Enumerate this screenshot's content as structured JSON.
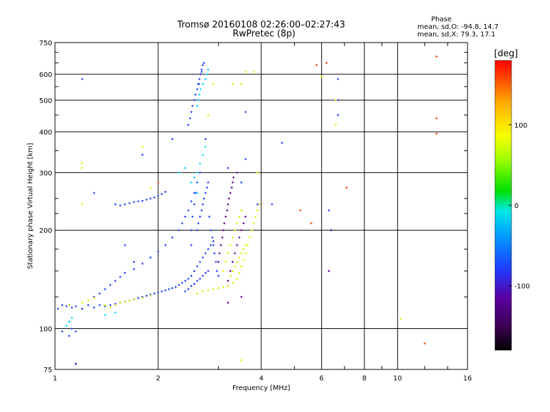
{
  "chart_data": {
    "type": "scatter",
    "title_line1": "Tromsø 20160108 02:26:00–02:27:43",
    "title_line2": "RwPretec (8p)",
    "phase_header": "Phase",
    "phase_o": "mean, sd,O: -94.8, 14.7",
    "phase_x": "mean, sd,X:  79.3, 17.1",
    "xlabel": "Frequency [MHz]",
    "ylabel": "Stationary phase Virtual Height [km]",
    "x_scale": "log",
    "y_scale": "log",
    "xlim": [
      1,
      16
    ],
    "ylim": [
      75,
      750
    ],
    "grid": true,
    "x_ticks": [
      1,
      2,
      4,
      6,
      8,
      10,
      16
    ],
    "y_ticks": [
      75,
      100,
      200,
      300,
      400,
      500,
      600,
      750
    ],
    "colorbar": {
      "label": "[deg]",
      "range": [
        -180,
        180
      ],
      "ticks": [
        100,
        0,
        -100
      ]
    },
    "series": [
      {
        "phase": -110,
        "color": "#1e3cff",
        "points": [
          [
            1.02,
            115
          ],
          [
            1.05,
            118
          ],
          [
            1.08,
            117
          ],
          [
            1.1,
            118
          ],
          [
            1.12,
            116
          ],
          [
            1.15,
            117
          ],
          [
            1.2,
            115
          ],
          [
            1.25,
            118
          ],
          [
            1.3,
            116
          ],
          [
            1.35,
            118
          ],
          [
            1.4,
            117
          ],
          [
            1.45,
            118
          ],
          [
            1.5,
            119
          ],
          [
            1.55,
            120
          ],
          [
            1.6,
            121
          ],
          [
            1.65,
            122
          ],
          [
            1.7,
            123
          ],
          [
            1.75,
            124
          ],
          [
            1.8,
            125
          ],
          [
            1.85,
            126
          ],
          [
            1.9,
            127
          ],
          [
            1.95,
            128
          ],
          [
            2.0,
            129
          ],
          [
            2.05,
            130
          ],
          [
            2.1,
            131
          ],
          [
            2.15,
            132
          ],
          [
            2.2,
            133
          ],
          [
            2.25,
            134
          ],
          [
            2.3,
            136
          ],
          [
            2.35,
            138
          ],
          [
            2.4,
            140
          ],
          [
            2.45,
            142
          ],
          [
            2.5,
            145
          ],
          [
            1.3,
            125
          ],
          [
            1.35,
            128
          ],
          [
            1.4,
            132
          ],
          [
            1.45,
            136
          ],
          [
            1.5,
            140
          ],
          [
            1.55,
            144
          ],
          [
            1.6,
            148
          ],
          [
            1.7,
            152
          ],
          [
            1.8,
            158
          ],
          [
            1.9,
            165
          ],
          [
            2.0,
            172
          ],
          [
            2.1,
            180
          ],
          [
            2.2,
            190
          ],
          [
            2.3,
            200
          ],
          [
            2.35,
            210
          ],
          [
            2.4,
            220
          ],
          [
            2.45,
            230
          ],
          [
            2.5,
            245
          ],
          [
            2.55,
            260
          ],
          [
            2.6,
            280
          ],
          [
            2.65,
            300
          ],
          [
            1.5,
            240
          ],
          [
            1.55,
            238
          ],
          [
            1.6,
            240
          ],
          [
            1.65,
            242
          ],
          [
            1.7,
            244
          ],
          [
            1.75,
            245
          ],
          [
            1.8,
            246
          ],
          [
            1.85,
            248
          ],
          [
            1.9,
            250
          ],
          [
            1.95,
            252
          ],
          [
            2.0,
            255
          ],
          [
            2.05,
            258
          ],
          [
            2.1,
            262
          ],
          [
            2.45,
            420
          ],
          [
            2.48,
            440
          ],
          [
            2.5,
            460
          ],
          [
            2.52,
            480
          ],
          [
            2.55,
            500
          ],
          [
            2.57,
            520
          ],
          [
            2.6,
            540
          ],
          [
            2.62,
            560
          ],
          [
            2.64,
            580
          ],
          [
            2.66,
            600
          ],
          [
            2.68,
            620
          ],
          [
            2.7,
            640
          ],
          [
            2.72,
            650
          ],
          [
            2.68,
            610
          ],
          [
            2.63,
            560
          ],
          [
            2.5,
            180
          ],
          [
            2.5,
            200
          ],
          [
            2.52,
            220
          ],
          [
            2.55,
            240
          ],
          [
            2.58,
            260
          ],
          [
            2.6,
            200
          ],
          [
            2.62,
            210
          ],
          [
            2.65,
            220
          ],
          [
            2.68,
            230
          ],
          [
            2.7,
            240
          ],
          [
            2.72,
            250
          ],
          [
            2.75,
            260
          ],
          [
            2.78,
            270
          ],
          [
            2.8,
            280
          ],
          [
            2.82,
            220
          ],
          [
            2.85,
            200
          ],
          [
            2.88,
            190
          ],
          [
            2.9,
            180
          ],
          [
            2.92,
            170
          ],
          [
            2.95,
            160
          ],
          [
            2.97,
            150
          ],
          [
            3.0,
            145
          ],
          [
            2.55,
            150
          ],
          [
            2.6,
            155
          ],
          [
            2.65,
            160
          ],
          [
            2.7,
            165
          ],
          [
            2.75,
            170
          ],
          [
            2.8,
            175
          ],
          [
            2.85,
            180
          ],
          [
            2.9,
            185
          ],
          [
            2.4,
            130
          ],
          [
            2.45,
            132
          ],
          [
            2.5,
            135
          ],
          [
            2.55,
            137
          ],
          [
            2.6,
            140
          ],
          [
            2.65,
            142
          ],
          [
            2.7,
            145
          ],
          [
            2.75,
            148
          ],
          [
            2.8,
            150
          ],
          [
            1.2,
            580
          ],
          [
            1.8,
            340
          ],
          [
            2.2,
            380
          ],
          [
            2.75,
            380
          ],
          [
            1.3,
            260
          ],
          [
            1.6,
            180
          ],
          [
            1.7,
            160
          ],
          [
            1.1,
            105
          ],
          [
            1.12,
            100
          ],
          [
            1.15,
            98
          ],
          [
            1.05,
            98
          ],
          [
            1.1,
            95
          ],
          [
            1.15,
            78
          ],
          [
            3.9,
            240
          ],
          [
            4.3,
            240
          ],
          [
            4.6,
            370
          ],
          [
            6.3,
            230
          ],
          [
            6.4,
            200
          ],
          [
            6.7,
            580
          ],
          [
            6.7,
            500
          ],
          [
            6.7,
            450
          ],
          [
            3.6,
            460
          ],
          [
            3.6,
            330
          ],
          [
            3.5,
            280
          ],
          [
            3.2,
            310
          ]
        ]
      },
      {
        "phase": 75,
        "color": "#dcf000",
        "points": [
          [
            1.1,
            118
          ],
          [
            1.2,
            120
          ],
          [
            1.25,
            122
          ],
          [
            1.3,
            124
          ],
          [
            1.4,
            118
          ],
          [
            1.45,
            116
          ],
          [
            1.5,
            118
          ],
          [
            1.55,
            120
          ],
          [
            1.6,
            121
          ],
          [
            1.65,
            122
          ],
          [
            1.7,
            123
          ],
          [
            1.8,
            124
          ],
          [
            1.9,
            126
          ],
          [
            2.6,
            128
          ],
          [
            2.7,
            130
          ],
          [
            2.8,
            131
          ],
          [
            2.9,
            132
          ],
          [
            3.0,
            133
          ],
          [
            3.1,
            134
          ],
          [
            3.2,
            135
          ],
          [
            3.3,
            138
          ],
          [
            3.4,
            142
          ],
          [
            3.45,
            148
          ],
          [
            3.5,
            155
          ],
          [
            3.55,
            162
          ],
          [
            3.6,
            170
          ],
          [
            3.65,
            180
          ],
          [
            3.7,
            190
          ],
          [
            3.75,
            200
          ],
          [
            3.8,
            210
          ],
          [
            3.85,
            220
          ],
          [
            3.9,
            230
          ],
          [
            3.95,
            240
          ],
          [
            3.1,
            150
          ],
          [
            3.15,
            160
          ],
          [
            3.2,
            170
          ],
          [
            3.25,
            180
          ],
          [
            3.3,
            190
          ],
          [
            3.35,
            200
          ],
          [
            3.4,
            210
          ],
          [
            3.45,
            220
          ],
          [
            3.5,
            230
          ],
          [
            3.2,
            140
          ],
          [
            3.25,
            145
          ],
          [
            3.3,
            150
          ],
          [
            3.35,
            155
          ],
          [
            3.4,
            160
          ],
          [
            3.45,
            165
          ],
          [
            3.5,
            170
          ],
          [
            3.55,
            175
          ],
          [
            3.6,
            180
          ],
          [
            3.6,
            610
          ],
          [
            3.8,
            610
          ],
          [
            3.5,
            560
          ],
          [
            3.3,
            560
          ],
          [
            2.9,
            560
          ],
          [
            2.8,
            450
          ],
          [
            3.9,
            300
          ],
          [
            3.5,
            80
          ],
          [
            1.2,
            320
          ],
          [
            1.2,
            310
          ],
          [
            1.2,
            240
          ],
          [
            1.8,
            360
          ],
          [
            1.9,
            270
          ],
          [
            6.0,
            590
          ],
          [
            6.6,
            500
          ],
          [
            6.6,
            420
          ],
          [
            10.2,
            107
          ]
        ]
      },
      {
        "phase": 0,
        "color": "#00d8ff",
        "points": [
          [
            2.6,
            480
          ],
          [
            2.62,
            500
          ],
          [
            2.64,
            520
          ],
          [
            2.66,
            540
          ],
          [
            2.7,
            560
          ],
          [
            2.75,
            580
          ],
          [
            2.78,
            600
          ],
          [
            2.8,
            620
          ],
          [
            2.6,
            300
          ],
          [
            2.65,
            320
          ],
          [
            2.7,
            340
          ],
          [
            2.75,
            360
          ],
          [
            1.1,
            105
          ],
          [
            1.12,
            108
          ],
          [
            1.08,
            102
          ],
          [
            2.3,
            300
          ],
          [
            2.4,
            310
          ],
          [
            2.5,
            280
          ],
          [
            2.55,
            290
          ],
          [
            2.6,
            260
          ],
          [
            1.4,
            110
          ],
          [
            1.5,
            112
          ]
        ]
      },
      {
        "phase": -150,
        "color": "#5a0090",
        "points": [
          [
            3.0,
            160
          ],
          [
            3.02,
            170
          ],
          [
            3.05,
            180
          ],
          [
            3.08,
            190
          ],
          [
            3.1,
            200
          ],
          [
            3.12,
            210
          ],
          [
            3.15,
            220
          ],
          [
            3.18,
            230
          ],
          [
            3.2,
            240
          ],
          [
            3.22,
            250
          ],
          [
            3.25,
            260
          ],
          [
            3.28,
            270
          ],
          [
            3.3,
            280
          ],
          [
            3.32,
            290
          ],
          [
            3.2,
            140
          ],
          [
            3.25,
            150
          ],
          [
            3.3,
            160
          ],
          [
            3.35,
            170
          ],
          [
            3.4,
            180
          ],
          [
            3.45,
            190
          ],
          [
            3.5,
            200
          ],
          [
            3.55,
            210
          ],
          [
            3.6,
            220
          ],
          [
            3.4,
            300
          ],
          [
            1.15,
            78
          ],
          [
            3.2,
            120
          ],
          [
            3.5,
            125
          ],
          [
            6.3,
            150
          ],
          [
            6.4,
            200
          ]
        ]
      },
      {
        "phase": 150,
        "color": "#ff3c00",
        "points": [
          [
            5.8,
            640
          ],
          [
            6.2,
            650
          ],
          [
            7.1,
            270
          ],
          [
            5.2,
            230
          ],
          [
            5.6,
            210
          ],
          [
            13.0,
            680
          ],
          [
            13.0,
            440
          ],
          [
            13.0,
            395
          ],
          [
            12.0,
            90
          ],
          [
            2.0,
            280
          ]
        ]
      }
    ]
  }
}
